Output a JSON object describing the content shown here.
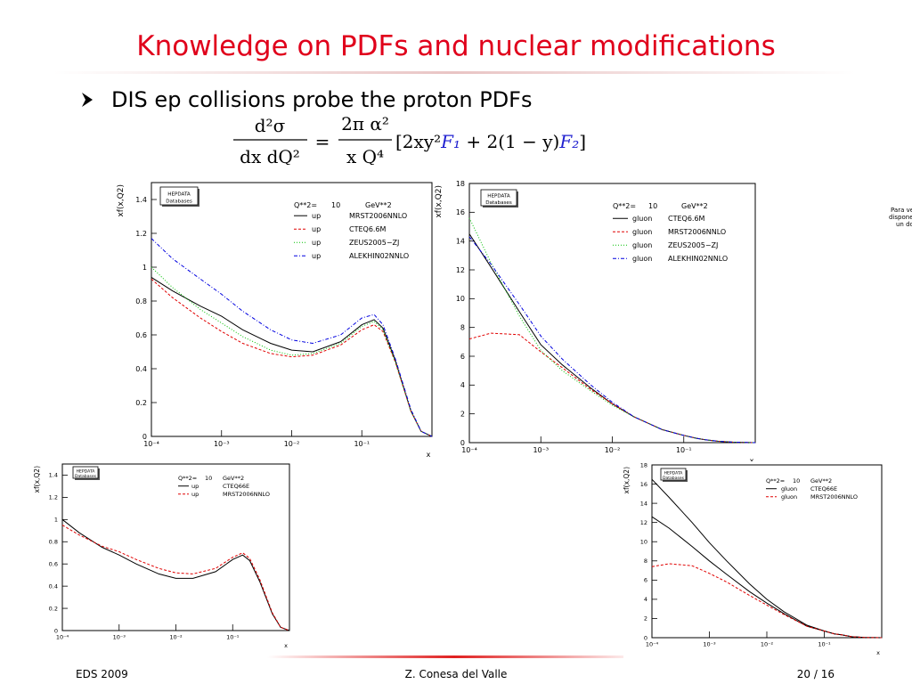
{
  "slide": {
    "title": "Knowledge on PDFs and nuclear modifications",
    "bullet": "DIS ep collisions probe the proton PDFs",
    "formula": {
      "lhs_num": "d²σ",
      "lhs_den": "dx dQ²",
      "eq": "=",
      "rhs_num": "2π α²",
      "rhs_den": "x Q⁴",
      "bracket": [
        "[2xy²",
        "F₁",
        " + 2(1 − y)",
        "F₂",
        "]"
      ]
    },
    "side_note": [
      "Para ve",
      "disponer",
      "un do"
    ],
    "footer": {
      "left": "EDS 2009",
      "center": "Z. Conesa del Valle",
      "right": "20 / 16"
    }
  },
  "chart_data": [
    {
      "type": "line",
      "xscale": "log",
      "ylabel": "xf(x,Q2)",
      "xlabel": "x",
      "logo": [
        "HEPDATA",
        "Databases"
      ],
      "legend_header": [
        "Q**2=",
        "10",
        "GeV**2"
      ],
      "x": [
        0.0001,
        0.0002,
        0.0005,
        0.001,
        0.002,
        0.005,
        0.01,
        0.02,
        0.05,
        0.1,
        0.15,
        0.2,
        0.3,
        0.5,
        0.7,
        1
      ],
      "xlim": [
        0.0001,
        1
      ],
      "xticks": [
        {
          "value": 0.0001,
          "label": "10⁻⁴"
        },
        {
          "value": 0.001,
          "label": "10⁻³"
        },
        {
          "value": 0.01,
          "label": "10⁻²"
        },
        {
          "value": 0.1,
          "label": "10⁻¹"
        }
      ],
      "ylim": [
        0,
        1.5
      ],
      "yticks": [
        0,
        0.2,
        0.4,
        0.6,
        0.8,
        1,
        1.2,
        1.4
      ],
      "series": [
        {
          "name": "up",
          "pdf": "MRST2006NNLO",
          "color": "#000000",
          "dash": "solid",
          "values": [
            0.94,
            0.86,
            0.77,
            0.71,
            0.63,
            0.55,
            0.51,
            0.5,
            0.56,
            0.66,
            0.69,
            0.64,
            0.45,
            0.15,
            0.03,
            0
          ]
        },
        {
          "name": "up",
          "pdf": "CTEQ6.6M",
          "color": "#e00000",
          "dash": "dashed",
          "values": [
            0.93,
            0.82,
            0.7,
            0.62,
            0.55,
            0.49,
            0.47,
            0.48,
            0.54,
            0.63,
            0.66,
            0.62,
            0.44,
            0.15,
            0.03,
            0
          ]
        },
        {
          "name": "up",
          "pdf": "ZEUS2005−ZJ",
          "color": "#00c000",
          "dash": "dotted",
          "values": [
            1.0,
            0.88,
            0.75,
            0.67,
            0.59,
            0.51,
            0.48,
            0.49,
            0.55,
            0.65,
            0.68,
            0.63,
            0.44,
            0.15,
            0.03,
            0
          ]
        },
        {
          "name": "up",
          "pdf": "ALEKHIN02NNLO",
          "color": "#0000e0",
          "dash": "dashdot",
          "values": [
            1.17,
            1.05,
            0.93,
            0.84,
            0.74,
            0.63,
            0.57,
            0.55,
            0.6,
            0.7,
            0.72,
            0.66,
            0.46,
            0.16,
            0.03,
            0
          ]
        }
      ]
    },
    {
      "type": "line",
      "xscale": "log",
      "ylabel": "xf(x,Q2)",
      "xlabel": "x",
      "logo": [
        "HEPDATA",
        "Databases"
      ],
      "legend_header": [
        "Q**2=",
        "10",
        "GeV**2"
      ],
      "x": [
        0.0001,
        0.0002,
        0.0005,
        0.001,
        0.002,
        0.005,
        0.01,
        0.02,
        0.05,
        0.1,
        0.15,
        0.2,
        0.3,
        0.5,
        0.7,
        1
      ],
      "xlim": [
        0.0001,
        1
      ],
      "xticks": [
        {
          "value": 0.0001,
          "label": "10⁻⁴"
        },
        {
          "value": 0.001,
          "label": "10⁻³"
        },
        {
          "value": 0.01,
          "label": "10⁻²"
        },
        {
          "value": 0.1,
          "label": "10⁻¹"
        }
      ],
      "ylim": [
        0,
        18
      ],
      "yticks": [
        0,
        2,
        4,
        6,
        8,
        10,
        12,
        14,
        16,
        18
      ],
      "series": [
        {
          "name": "gluon",
          "pdf": "CTEQ6.6M",
          "color": "#000000",
          "dash": "solid",
          "values": [
            14.5,
            12.2,
            9.1,
            6.8,
            5.4,
            3.8,
            2.7,
            1.8,
            0.9,
            0.5,
            0.3,
            0.2,
            0.1,
            0.03,
            0.01,
            0
          ]
        },
        {
          "name": "gluon",
          "pdf": "MRST2006NNLO",
          "color": "#e00000",
          "dash": "dashed",
          "values": [
            7.2,
            7.6,
            7.5,
            6.3,
            5.2,
            3.7,
            2.7,
            1.8,
            0.9,
            0.5,
            0.3,
            0.2,
            0.1,
            0.03,
            0.01,
            0
          ]
        },
        {
          "name": "gluon",
          "pdf": "ZEUS2005−ZJ",
          "color": "#00c000",
          "dash": "dotted",
          "values": [
            15.6,
            12.5,
            8.8,
            6.4,
            5.0,
            3.6,
            2.6,
            1.8,
            0.9,
            0.5,
            0.3,
            0.2,
            0.1,
            0.03,
            0.01,
            0
          ]
        },
        {
          "name": "gluon",
          "pdf": "ALEKHIN02NNLO",
          "color": "#0000e0",
          "dash": "dashdot",
          "values": [
            14.3,
            12.4,
            9.6,
            7.4,
            5.8,
            4.0,
            2.8,
            1.8,
            0.9,
            0.5,
            0.3,
            0.2,
            0.1,
            0.03,
            0.01,
            0
          ]
        }
      ]
    },
    {
      "type": "line",
      "xscale": "log",
      "ylabel": "xf(x,Q2)",
      "xlabel": "x",
      "logo": [
        "HEPDATA",
        "Databases"
      ],
      "legend_header": [
        "Q**2=",
        "10",
        "GeV**2"
      ],
      "x": [
        0.0001,
        0.0002,
        0.0005,
        0.001,
        0.002,
        0.005,
        0.01,
        0.02,
        0.05,
        0.1,
        0.15,
        0.2,
        0.3,
        0.5,
        0.7,
        1
      ],
      "xlim": [
        0.0001,
        1
      ],
      "xticks": [
        {
          "value": 0.0001,
          "label": "10⁻⁴"
        },
        {
          "value": 0.001,
          "label": "10⁻³"
        },
        {
          "value": 0.01,
          "label": "10⁻²"
        },
        {
          "value": 0.1,
          "label": "10⁻¹"
        }
      ],
      "ylim": [
        0,
        1.5
      ],
      "yticks": [
        0,
        0.2,
        0.4,
        0.6,
        0.8,
        1,
        1.2,
        1.4
      ],
      "series": [
        {
          "name": "up",
          "pdf": "CTEQ66E",
          "color": "#000000",
          "dash": "solid",
          "values": [
            1.0,
            0.88,
            0.75,
            0.68,
            0.6,
            0.51,
            0.47,
            0.47,
            0.53,
            0.64,
            0.68,
            0.63,
            0.44,
            0.15,
            0.03,
            0
          ]
        },
        {
          "name": "up",
          "pdf": "MRST2006NNLO",
          "color": "#e00000",
          "dash": "dashed",
          "values": [
            0.95,
            0.86,
            0.76,
            0.71,
            0.64,
            0.56,
            0.52,
            0.51,
            0.56,
            0.66,
            0.7,
            0.65,
            0.46,
            0.16,
            0.03,
            0
          ]
        }
      ]
    },
    {
      "type": "line",
      "xscale": "log",
      "ylabel": "xf(x,Q2)",
      "xlabel": "x",
      "logo": [
        "HEPDATA",
        "Databases"
      ],
      "legend_header": [
        "Q**2=",
        "10",
        "GeV**2"
      ],
      "x": [
        0.0001,
        0.0002,
        0.0005,
        0.001,
        0.002,
        0.005,
        0.01,
        0.02,
        0.05,
        0.1,
        0.15,
        0.2,
        0.3,
        0.5,
        0.7,
        1
      ],
      "xlim": [
        0.0001,
        1
      ],
      "xticks": [
        {
          "value": 0.0001,
          "label": "10⁻⁴"
        },
        {
          "value": 0.001,
          "label": "10⁻³"
        },
        {
          "value": 0.01,
          "label": "10⁻²"
        },
        {
          "value": 0.1,
          "label": "10⁻¹"
        }
      ],
      "ylim": [
        0,
        18
      ],
      "yticks": [
        0,
        2,
        4,
        6,
        8,
        10,
        12,
        14,
        16,
        18
      ],
      "series": [
        {
          "name": "gluon",
          "pdf": "CTEQ66E",
          "color": "#000000",
          "dash": "solid",
          "values": [
            16.5,
            14.6,
            12.0,
            9.9,
            8.0,
            5.6,
            4.0,
            2.7,
            1.3,
            0.7,
            0.4,
            0.3,
            0.1,
            0.03,
            0.01,
            0
          ]
        },
        {
          "color": "#000000",
          "dash": "solid",
          "values": [
            12.6,
            11.4,
            9.5,
            8.0,
            6.6,
            4.8,
            3.6,
            2.5,
            1.2,
            0.7,
            0.4,
            0.3,
            0.1,
            0.03,
            0.01,
            0
          ]
        },
        {
          "name": "gluon",
          "pdf": "MRST2006NNLO",
          "color": "#e00000",
          "dash": "dashed",
          "values": [
            7.4,
            7.7,
            7.5,
            6.7,
            5.8,
            4.4,
            3.4,
            2.4,
            1.2,
            0.7,
            0.4,
            0.3,
            0.1,
            0.03,
            0.01,
            0
          ]
        }
      ]
    }
  ]
}
